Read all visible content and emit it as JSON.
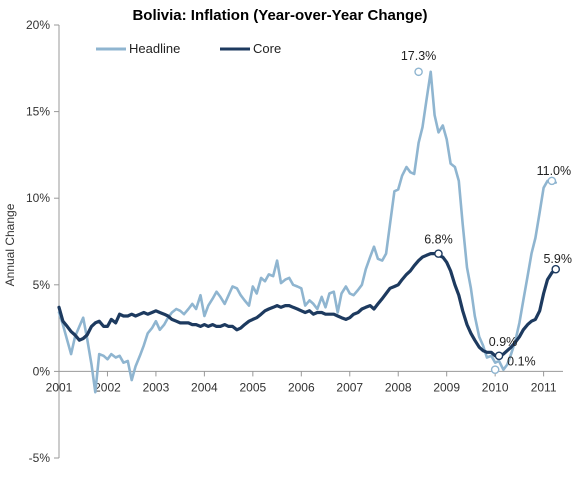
{
  "chart_data": {
    "type": "line",
    "title": "Bolivia: Inflation (Year-over-Year Change)",
    "xlabel": "",
    "ylabel": "Annual Change",
    "y_ticks": [
      "20%",
      "15%",
      "10%",
      "5%",
      "0%",
      "-5%"
    ],
    "y_tick_values": [
      20,
      15,
      10,
      5,
      0,
      -5
    ],
    "ylim": [
      -5,
      20
    ],
    "x_ticks": [
      "2001",
      "2002",
      "2003",
      "2004",
      "2005",
      "2006",
      "2007",
      "2008",
      "2009",
      "2010",
      "2011"
    ],
    "x_tick_values": [
      2001,
      2002,
      2003,
      2004,
      2005,
      2006,
      2007,
      2008,
      2009,
      2010,
      2011
    ],
    "xlim": [
      2001,
      2011.4
    ],
    "legend_position": "top-left",
    "grid": false,
    "series": [
      {
        "name": "Headline",
        "color": "#8fb5d0",
        "x": [
          2001.0,
          2001.08,
          2001.17,
          2001.25,
          2001.33,
          2001.42,
          2001.5,
          2001.58,
          2001.67,
          2001.75,
          2001.83,
          2001.92,
          2002.0,
          2002.08,
          2002.17,
          2002.25,
          2002.33,
          2002.42,
          2002.5,
          2002.58,
          2002.67,
          2002.75,
          2002.83,
          2002.92,
          2003.0,
          2003.08,
          2003.17,
          2003.25,
          2003.33,
          2003.42,
          2003.5,
          2003.58,
          2003.67,
          2003.75,
          2003.83,
          2003.92,
          2004.0,
          2004.08,
          2004.17,
          2004.25,
          2004.33,
          2004.42,
          2004.5,
          2004.58,
          2004.67,
          2004.75,
          2004.83,
          2004.92,
          2005.0,
          2005.08,
          2005.17,
          2005.25,
          2005.33,
          2005.42,
          2005.5,
          2005.58,
          2005.67,
          2005.75,
          2005.83,
          2005.92,
          2006.0,
          2006.08,
          2006.17,
          2006.25,
          2006.33,
          2006.42,
          2006.5,
          2006.58,
          2006.67,
          2006.75,
          2006.83,
          2006.92,
          2007.0,
          2007.08,
          2007.17,
          2007.25,
          2007.33,
          2007.42,
          2007.5,
          2007.58,
          2007.67,
          2007.75,
          2007.83,
          2007.92,
          2008.0,
          2008.08,
          2008.17,
          2008.25,
          2008.33,
          2008.42,
          2008.5,
          2008.58,
          2008.67,
          2008.75,
          2008.83,
          2008.92,
          2009.0,
          2009.08,
          2009.17,
          2009.25,
          2009.33,
          2009.42,
          2009.5,
          2009.58,
          2009.67,
          2009.75,
          2009.83,
          2009.92,
          2010.0,
          2010.08,
          2010.17,
          2010.25,
          2010.33,
          2010.42,
          2010.5,
          2010.58,
          2010.67,
          2010.75,
          2010.83,
          2010.92,
          2011.0,
          2011.08,
          2011.17,
          2011.25
        ],
        "values": [
          3.4,
          2.7,
          1.8,
          1.0,
          2.0,
          2.6,
          3.1,
          1.9,
          0.4,
          -1.2,
          1.0,
          0.9,
          0.7,
          1.0,
          0.8,
          0.9,
          0.5,
          0.6,
          -0.5,
          0.3,
          0.9,
          1.5,
          2.2,
          2.5,
          2.9,
          2.4,
          2.7,
          3.1,
          3.4,
          3.6,
          3.5,
          3.3,
          3.6,
          3.9,
          3.6,
          4.4,
          3.2,
          3.8,
          4.2,
          4.6,
          4.3,
          3.9,
          4.4,
          4.9,
          4.8,
          4.4,
          4.1,
          3.8,
          4.9,
          4.5,
          5.4,
          5.2,
          5.6,
          5.5,
          6.4,
          5.1,
          5.3,
          5.4,
          5.0,
          4.9,
          4.8,
          3.8,
          4.1,
          3.9,
          3.6,
          4.3,
          3.7,
          4.5,
          4.6,
          3.4,
          4.5,
          4.9,
          4.5,
          4.4,
          4.7,
          5.0,
          5.9,
          6.6,
          7.2,
          6.5,
          6.4,
          6.8,
          8.5,
          10.4,
          10.5,
          11.3,
          11.8,
          11.5,
          11.4,
          13.2,
          14.1,
          15.6,
          17.3,
          14.8,
          13.8,
          14.2,
          13.4,
          12.0,
          11.8,
          11.0,
          8.5,
          6.0,
          4.8,
          3.2,
          2.0,
          1.5,
          0.8,
          0.9,
          0.5,
          0.6,
          0.1,
          0.4,
          1.0,
          1.8,
          2.8,
          4.1,
          5.5,
          6.8,
          7.7,
          9.2,
          10.6,
          11.0,
          11.0,
          10.9
        ]
      },
      {
        "name": "Core",
        "color": "#1d3a5f",
        "x": [
          2001.0,
          2001.08,
          2001.17,
          2001.25,
          2001.33,
          2001.42,
          2001.5,
          2001.58,
          2001.67,
          2001.75,
          2001.83,
          2001.92,
          2002.0,
          2002.08,
          2002.17,
          2002.25,
          2002.33,
          2002.42,
          2002.5,
          2002.58,
          2002.67,
          2002.75,
          2002.83,
          2002.92,
          2003.0,
          2003.08,
          2003.17,
          2003.25,
          2003.33,
          2003.42,
          2003.5,
          2003.58,
          2003.67,
          2003.75,
          2003.83,
          2003.92,
          2004.0,
          2004.08,
          2004.17,
          2004.25,
          2004.33,
          2004.42,
          2004.5,
          2004.58,
          2004.67,
          2004.75,
          2004.83,
          2004.92,
          2005.0,
          2005.08,
          2005.17,
          2005.25,
          2005.33,
          2005.42,
          2005.5,
          2005.58,
          2005.67,
          2005.75,
          2005.83,
          2005.92,
          2006.0,
          2006.08,
          2006.17,
          2006.25,
          2006.33,
          2006.42,
          2006.5,
          2006.58,
          2006.67,
          2006.75,
          2006.83,
          2006.92,
          2007.0,
          2007.08,
          2007.17,
          2007.25,
          2007.33,
          2007.42,
          2007.5,
          2007.58,
          2007.67,
          2007.75,
          2007.83,
          2007.92,
          2008.0,
          2008.08,
          2008.17,
          2008.25,
          2008.33,
          2008.42,
          2008.5,
          2008.58,
          2008.67,
          2008.75,
          2008.83,
          2008.92,
          2009.0,
          2009.08,
          2009.17,
          2009.25,
          2009.33,
          2009.42,
          2009.5,
          2009.58,
          2009.67,
          2009.75,
          2009.83,
          2009.92,
          2010.0,
          2010.08,
          2010.17,
          2010.25,
          2010.33,
          2010.42,
          2010.5,
          2010.58,
          2010.67,
          2010.75,
          2010.83,
          2010.92,
          2011.0,
          2011.08,
          2011.17,
          2011.25
        ],
        "values": [
          3.7,
          2.9,
          2.6,
          2.3,
          2.1,
          1.8,
          1.9,
          2.1,
          2.6,
          2.8,
          2.9,
          2.6,
          2.6,
          3.0,
          2.8,
          3.3,
          3.2,
          3.2,
          3.3,
          3.2,
          3.3,
          3.4,
          3.3,
          3.4,
          3.5,
          3.4,
          3.3,
          3.2,
          3.0,
          2.9,
          2.8,
          2.8,
          2.8,
          2.7,
          2.7,
          2.6,
          2.7,
          2.6,
          2.7,
          2.6,
          2.6,
          2.7,
          2.6,
          2.6,
          2.4,
          2.5,
          2.7,
          2.9,
          3.0,
          3.1,
          3.3,
          3.5,
          3.6,
          3.7,
          3.8,
          3.7,
          3.8,
          3.8,
          3.7,
          3.6,
          3.5,
          3.4,
          3.5,
          3.3,
          3.4,
          3.4,
          3.3,
          3.3,
          3.3,
          3.2,
          3.1,
          3.0,
          3.1,
          3.3,
          3.4,
          3.6,
          3.7,
          3.8,
          3.6,
          3.9,
          4.2,
          4.5,
          4.8,
          4.9,
          5.0,
          5.3,
          5.6,
          5.8,
          6.1,
          6.4,
          6.6,
          6.7,
          6.8,
          6.8,
          6.7,
          6.6,
          6.3,
          5.8,
          5.0,
          4.4,
          3.5,
          2.7,
          2.2,
          1.8,
          1.4,
          1.2,
          1.1,
          1.1,
          0.9,
          0.9,
          1.0,
          1.2,
          1.4,
          1.7,
          2.0,
          2.4,
          2.7,
          2.9,
          3.0,
          3.5,
          4.5,
          5.3,
          5.7,
          5.9
        ]
      }
    ],
    "annotations": [
      {
        "label": "17.3%",
        "x": 2008.42,
        "y": 17.3,
        "series": "Headline"
      },
      {
        "label": "6.8%",
        "x": 2008.83,
        "y": 6.8,
        "series": "Core"
      },
      {
        "label": "0.9%",
        "x": 2010.08,
        "y": 0.9,
        "series": "Core"
      },
      {
        "label": "0.1%",
        "x": 2010.0,
        "y": 0.1,
        "series": "Headline"
      },
      {
        "label": "11.0%",
        "x": 2011.17,
        "y": 11.0,
        "series": "Headline"
      },
      {
        "label": "5.9%",
        "x": 2011.25,
        "y": 5.9,
        "series": "Core"
      }
    ]
  }
}
